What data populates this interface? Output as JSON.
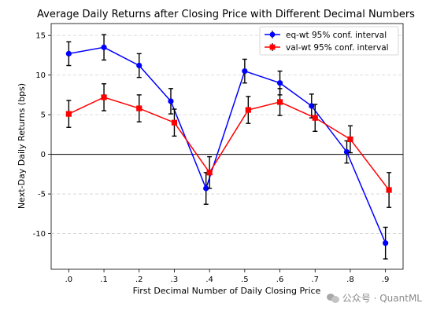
{
  "chart_data": {
    "type": "line",
    "title": "Average Daily Returns after Closing Price with Different Decimal Numbers",
    "xlabel": "First Decimal Number of Daily Closing Price",
    "ylabel": "Next-Day Daily Returns (bps)",
    "categories": [
      ".0",
      ".1",
      ".2",
      ".3",
      ".4",
      ".5",
      ".6",
      ".7",
      ".8",
      ".9"
    ],
    "x": [
      0.0,
      0.1,
      0.2,
      0.3,
      0.4,
      0.5,
      0.6,
      0.7,
      0.8,
      0.9
    ],
    "xlim": [
      -0.05,
      0.95
    ],
    "ylim": [
      -14.5,
      16.5
    ],
    "yticks": [
      -10,
      -5,
      0,
      5,
      10,
      15
    ],
    "ytick_labels": [
      "-10",
      "-5",
      "0",
      "5",
      "10",
      "15"
    ],
    "grid": "y-dashed",
    "zero_line": true,
    "legend_position": "top-right",
    "series": [
      {
        "name": "eq-wt 95% conf. interval",
        "color": "#0000ff",
        "marker": "circle",
        "x": [
          0.0,
          0.1,
          0.2,
          0.29,
          0.39,
          0.5,
          0.6,
          0.69,
          0.79,
          0.9
        ],
        "values": [
          12.7,
          13.5,
          11.2,
          6.7,
          -4.3,
          10.5,
          9.0,
          6.1,
          0.3,
          -11.2
        ],
        "err": [
          1.5,
          1.6,
          1.5,
          1.6,
          2.0,
          1.5,
          1.5,
          1.5,
          1.4,
          2.0
        ]
      },
      {
        "name": "val-wt 95% conf. interval",
        "color": "#ff0000",
        "marker": "square",
        "x": [
          0.0,
          0.1,
          0.2,
          0.3,
          0.4,
          0.51,
          0.6,
          0.7,
          0.8,
          0.91
        ],
        "values": [
          5.1,
          7.2,
          5.8,
          4.0,
          -2.3,
          5.6,
          6.6,
          4.6,
          1.9,
          -4.5
        ],
        "err": [
          1.7,
          1.7,
          1.7,
          1.7,
          2.0,
          1.7,
          1.7,
          1.7,
          1.7,
          2.2
        ]
      }
    ]
  },
  "watermark": {
    "text": "公众号 · QuantML",
    "icon": "wechat-bubbles-icon"
  }
}
